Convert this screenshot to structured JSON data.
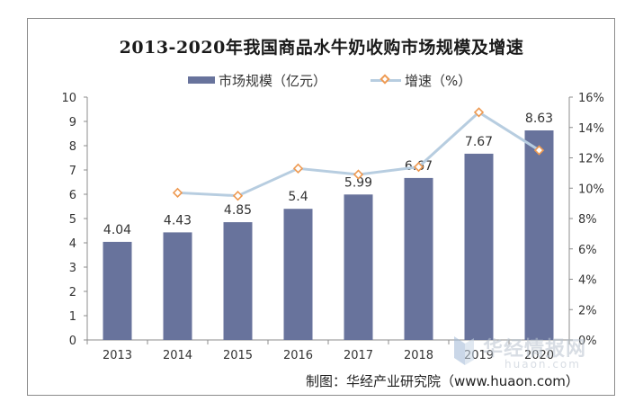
{
  "colors": {
    "bar": "#68739c",
    "line": "#b7cde0",
    "marker_stroke": "#ee9a52",
    "axis": "#8c8c8c",
    "text": "#333333"
  },
  "legend": {
    "bar_label": "市场规模（亿元）",
    "line_label": "增速（%）"
  },
  "source": "制图：华经产业研究院（www.huaon.com）",
  "watermark": {
    "brand": "华经情报网",
    "url": "huaon.com"
  },
  "chart_data": {
    "type": "bar",
    "title": "2013-2020年我国商品水牛奶收购市场规模及增速",
    "categories": [
      "2013",
      "2014",
      "2015",
      "2016",
      "2017",
      "2018",
      "2019",
      "2020"
    ],
    "series": [
      {
        "name": "市场规模（亿元）",
        "type": "bar",
        "axis": "left",
        "values": [
          4.04,
          4.43,
          4.85,
          5.4,
          5.99,
          6.67,
          7.67,
          8.63
        ],
        "labels": [
          "4.04",
          "4.43",
          "4.85",
          "5.4",
          "5.99",
          "6.67",
          "7.67",
          "8.63"
        ]
      },
      {
        "name": "增速（%）",
        "type": "line",
        "axis": "right",
        "values": [
          null,
          9.7,
          9.5,
          11.3,
          10.9,
          11.4,
          15.0,
          12.5
        ]
      }
    ],
    "ylim_left": [
      0,
      10
    ],
    "yticks_left": [
      "0",
      "1",
      "2",
      "3",
      "4",
      "5",
      "6",
      "7",
      "8",
      "9",
      "10"
    ],
    "ylim_right": [
      0,
      16
    ],
    "yticks_right": [
      "0%",
      "2%",
      "4%",
      "6%",
      "8%",
      "10%",
      "12%",
      "14%",
      "16%"
    ],
    "grid": false,
    "legend_position": "top"
  }
}
